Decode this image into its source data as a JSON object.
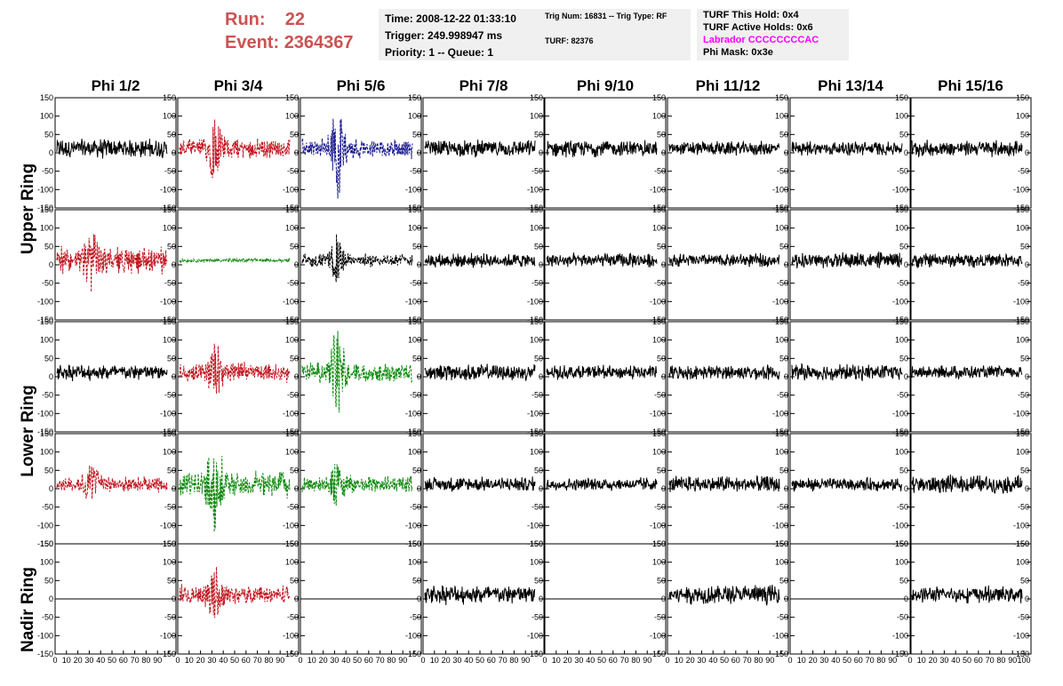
{
  "run_info": {
    "run_label": "Run:",
    "run_value": "22",
    "event_label": "Event:",
    "event_value": "2364367"
  },
  "info_box_1": {
    "time": "Time: 2008-12-22 01:33:10",
    "trigger": "Trigger: 249.998947 ms",
    "priority": "Priority: 1 -- Queue: 1"
  },
  "info_box_2": {
    "trig": "Trig Num: 16831 -- Trig Type: RF",
    "turf": "TURF: 82376"
  },
  "info_box_3": {
    "hold": "TURF This Hold: 0x4",
    "active": "TURF Active Holds: 0x6",
    "labrador": "Labrador CCCCCCCCAC",
    "phimask": "Phi Mask: 0x3e"
  },
  "columns": [
    "Phi 1/2",
    "Phi 3/4",
    "Phi 5/6",
    "Phi 7/8",
    "Phi 9/10",
    "Phi 11/12",
    "Phi 13/14",
    "Phi 15/16"
  ],
  "rings": [
    "Upper Ring",
    "Lower Ring",
    "Nadir Ring"
  ],
  "colors": {
    "run_text": "#cd5252",
    "labrador": "#ff00ff",
    "red": "#c0141e",
    "blue": "#1a1a8c",
    "green": "#0e8a0e",
    "black": "#000000"
  },
  "chart_data": {
    "type": "line",
    "ylim": [
      -150,
      150
    ],
    "xlim": [
      0,
      100
    ],
    "y_ticks": [
      "150",
      "100",
      "50",
      "0",
      "-50",
      "-100",
      "-150"
    ],
    "x_ticks": [
      "0",
      "10",
      "20",
      "30",
      "40",
      "50",
      "60",
      "70",
      "80",
      "90",
      "100"
    ],
    "x_tick_label_row": "0 10 20 30 40 50 60 70 80 90 100",
    "grid": false,
    "panels": [
      [
        "solid:black:30:0",
        "dash:red:30:90",
        "dash:blue:30:130",
        "solid:black:25:0",
        "solid:black:25:0",
        "solid:black:22:0",
        "solid:black:22:0",
        "solid:black:25:0"
      ],
      [
        "dash:red:40:70",
        "dash:green:6:0",
        "dash:black:20:60",
        "solid:black:22:0",
        "solid:black:22:0",
        "solid:black:20:0",
        "solid:black:25:0",
        "solid:black:22:0"
      ],
      [
        "solid:black:25:0",
        "dash:red:30:90",
        "dash:green:30:140",
        "solid:black:25:0",
        "solid:black:22:0",
        "solid:black:22:0",
        "solid:black:25:0",
        "solid:black:20:0"
      ],
      [
        "dash:red:25:60",
        "dash:green:40:125",
        "dash:green:25:60",
        "solid:black:22:0",
        "solid:black:20:0",
        "solid:black:25:0",
        "solid:black:20:0",
        "solid:black:28:0"
      ],
      [
        "flat:black:0:0",
        "dash:red:30:60",
        "flat:black:0:0",
        "solid:black:30:0",
        "flat:black:0:0",
        "solid:black:30:0",
        "flat:black:0:0",
        "solid:black:25:0"
      ]
    ]
  }
}
